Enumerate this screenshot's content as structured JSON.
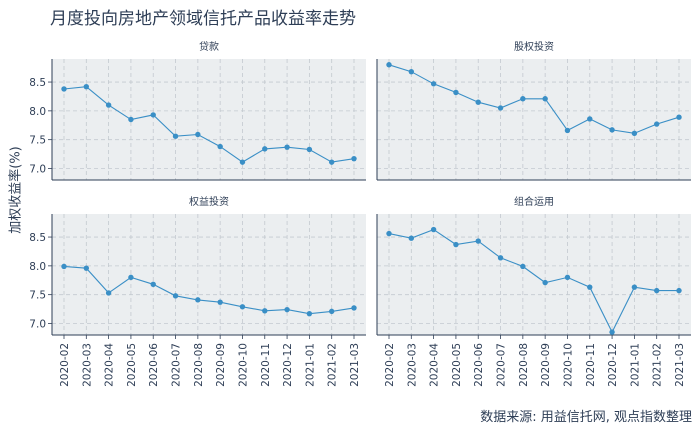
{
  "title": "月度投向房地产领域信托产品收益率走势",
  "source": "数据来源: 用益信托网, 观点指数整理",
  "chart_data": {
    "type": "line",
    "facets": 4,
    "title": "月度投向房地产领域信托产品收益率走势",
    "xlabel": "",
    "ylabel": "加权收益率(%)",
    "x": [
      "2020-02",
      "2020-03",
      "2020-04",
      "2020-05",
      "2020-06",
      "2020-07",
      "2020-08",
      "2020-09",
      "2020-10",
      "2020-11",
      "2020-12",
      "2021-01",
      "2021-02",
      "2021-03"
    ],
    "yticks": [
      "7.0",
      "7.5",
      "8.0",
      "8.5"
    ],
    "ylim": [
      6.8,
      8.9
    ],
    "grid": true,
    "line_color": "#3a8fc6",
    "panel_bg": "#ebeef0",
    "panels": [
      {
        "name": "贷款",
        "values": [
          8.38,
          8.42,
          8.1,
          7.85,
          7.93,
          7.56,
          7.59,
          7.38,
          7.11,
          7.34,
          7.37,
          7.33,
          7.11,
          7.17
        ]
      },
      {
        "name": "股权投资",
        "values": [
          8.8,
          8.68,
          8.47,
          8.32,
          8.15,
          8.05,
          8.21,
          8.21,
          7.66,
          7.86,
          7.67,
          7.61,
          7.77,
          7.89
        ]
      },
      {
        "name": "权益投资",
        "values": [
          7.99,
          7.96,
          7.53,
          7.8,
          7.68,
          7.48,
          7.41,
          7.37,
          7.29,
          7.22,
          7.24,
          7.17,
          7.21,
          7.27
        ]
      },
      {
        "name": "组合运用",
        "values": [
          8.56,
          8.48,
          8.63,
          8.37,
          8.43,
          8.14,
          7.99,
          7.71,
          7.8,
          7.63,
          6.85,
          7.63,
          7.57,
          7.57
        ]
      }
    ]
  }
}
